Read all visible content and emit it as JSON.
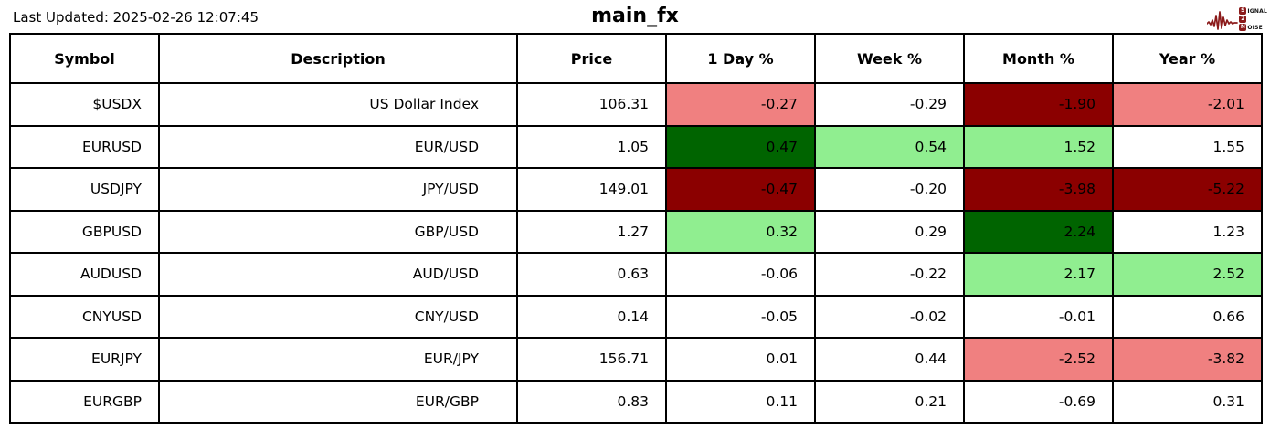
{
  "page": {
    "last_updated": "Last Updated: 2025-02-26 12:07:45",
    "title": "main_fx"
  },
  "logo": {
    "signal_boxed": "S",
    "signal_rest": "IGNAL",
    "two_boxed": "2",
    "noise_boxed": "N",
    "noise_rest": "OISE",
    "accent": "#8B1A1A"
  },
  "colors": {
    "white": "#FFFFFF",
    "salmon": "#F08080",
    "darkred": "#8B0000",
    "lightgreen": "#90EE90",
    "darkgreen": "#006400",
    "border": "#000000"
  },
  "table": {
    "columns": [
      "Symbol",
      "Description",
      "Price",
      "1 Day %",
      "Week %",
      "Month %",
      "Year %"
    ],
    "rows": [
      {
        "symbol": "$USDX",
        "description": "US Dollar Index",
        "price": "106.31",
        "pcts": [
          {
            "v": "-0.27",
            "bg": "salmon"
          },
          {
            "v": "-0.29",
            "bg": "white"
          },
          {
            "v": "-1.90",
            "bg": "darkred"
          },
          {
            "v": "-2.01",
            "bg": "salmon"
          }
        ]
      },
      {
        "symbol": "EURUSD",
        "description": "EUR/USD",
        "price": "1.05",
        "pcts": [
          {
            "v": "0.47",
            "bg": "darkgreen"
          },
          {
            "v": "0.54",
            "bg": "lightgreen"
          },
          {
            "v": "1.52",
            "bg": "lightgreen"
          },
          {
            "v": "1.55",
            "bg": "white"
          }
        ]
      },
      {
        "symbol": "USDJPY",
        "description": "JPY/USD",
        "price": "149.01",
        "pcts": [
          {
            "v": "-0.47",
            "bg": "darkred"
          },
          {
            "v": "-0.20",
            "bg": "white"
          },
          {
            "v": "-3.98",
            "bg": "darkred"
          },
          {
            "v": "-5.22",
            "bg": "darkred"
          }
        ]
      },
      {
        "symbol": "GBPUSD",
        "description": "GBP/USD",
        "price": "1.27",
        "pcts": [
          {
            "v": "0.32",
            "bg": "lightgreen"
          },
          {
            "v": "0.29",
            "bg": "white"
          },
          {
            "v": "2.24",
            "bg": "darkgreen"
          },
          {
            "v": "1.23",
            "bg": "white"
          }
        ]
      },
      {
        "symbol": "AUDUSD",
        "description": "AUD/USD",
        "price": "0.63",
        "pcts": [
          {
            "v": "-0.06",
            "bg": "white"
          },
          {
            "v": "-0.22",
            "bg": "white"
          },
          {
            "v": "2.17",
            "bg": "lightgreen"
          },
          {
            "v": "2.52",
            "bg": "lightgreen"
          }
        ]
      },
      {
        "symbol": "CNYUSD",
        "description": "CNY/USD",
        "price": "0.14",
        "pcts": [
          {
            "v": "-0.05",
            "bg": "white"
          },
          {
            "v": "-0.02",
            "bg": "white"
          },
          {
            "v": "-0.01",
            "bg": "white"
          },
          {
            "v": "0.66",
            "bg": "white"
          }
        ]
      },
      {
        "symbol": "EURJPY",
        "description": "EUR/JPY",
        "price": "156.71",
        "pcts": [
          {
            "v": "0.01",
            "bg": "white"
          },
          {
            "v": "0.44",
            "bg": "white"
          },
          {
            "v": "-2.52",
            "bg": "salmon"
          },
          {
            "v": "-3.82",
            "bg": "salmon"
          }
        ]
      },
      {
        "symbol": "EURGBP",
        "description": "EUR/GBP",
        "price": "0.83",
        "pcts": [
          {
            "v": "0.11",
            "bg": "white"
          },
          {
            "v": "0.21",
            "bg": "white"
          },
          {
            "v": "-0.69",
            "bg": "white"
          },
          {
            "v": "0.31",
            "bg": "white"
          }
        ]
      }
    ]
  },
  "chart_data": {
    "type": "table",
    "title": "main_fx",
    "columns": [
      "Symbol",
      "Description",
      "Price",
      "1 Day %",
      "Week %",
      "Month %",
      "Year %"
    ],
    "rows": [
      [
        "$USDX",
        "US Dollar Index",
        106.31,
        -0.27,
        -0.29,
        -1.9,
        -2.01
      ],
      [
        "EURUSD",
        "EUR/USD",
        1.05,
        0.47,
        0.54,
        1.52,
        1.55
      ],
      [
        "USDJPY",
        "JPY/USD",
        149.01,
        -0.47,
        -0.2,
        -3.98,
        -5.22
      ],
      [
        "GBPUSD",
        "GBP/USD",
        1.27,
        0.32,
        0.29,
        2.24,
        1.23
      ],
      [
        "AUDUSD",
        "AUD/USD",
        0.63,
        -0.06,
        -0.22,
        2.17,
        2.52
      ],
      [
        "CNYUSD",
        "CNY/USD",
        0.14,
        -0.05,
        -0.02,
        -0.01,
        0.66
      ],
      [
        "EURJPY",
        "EUR/JPY",
        156.71,
        0.01,
        0.44,
        -2.52,
        -3.82
      ],
      [
        "EURGBP",
        "EUR/GBP",
        0.83,
        0.11,
        0.21,
        -0.69,
        0.31
      ]
    ],
    "cell_color_legend": {
      "darkgreen": "strong positive move",
      "lightgreen": "positive move",
      "salmon": "negative move",
      "darkred": "strong negative move",
      "white": "neutral"
    }
  }
}
